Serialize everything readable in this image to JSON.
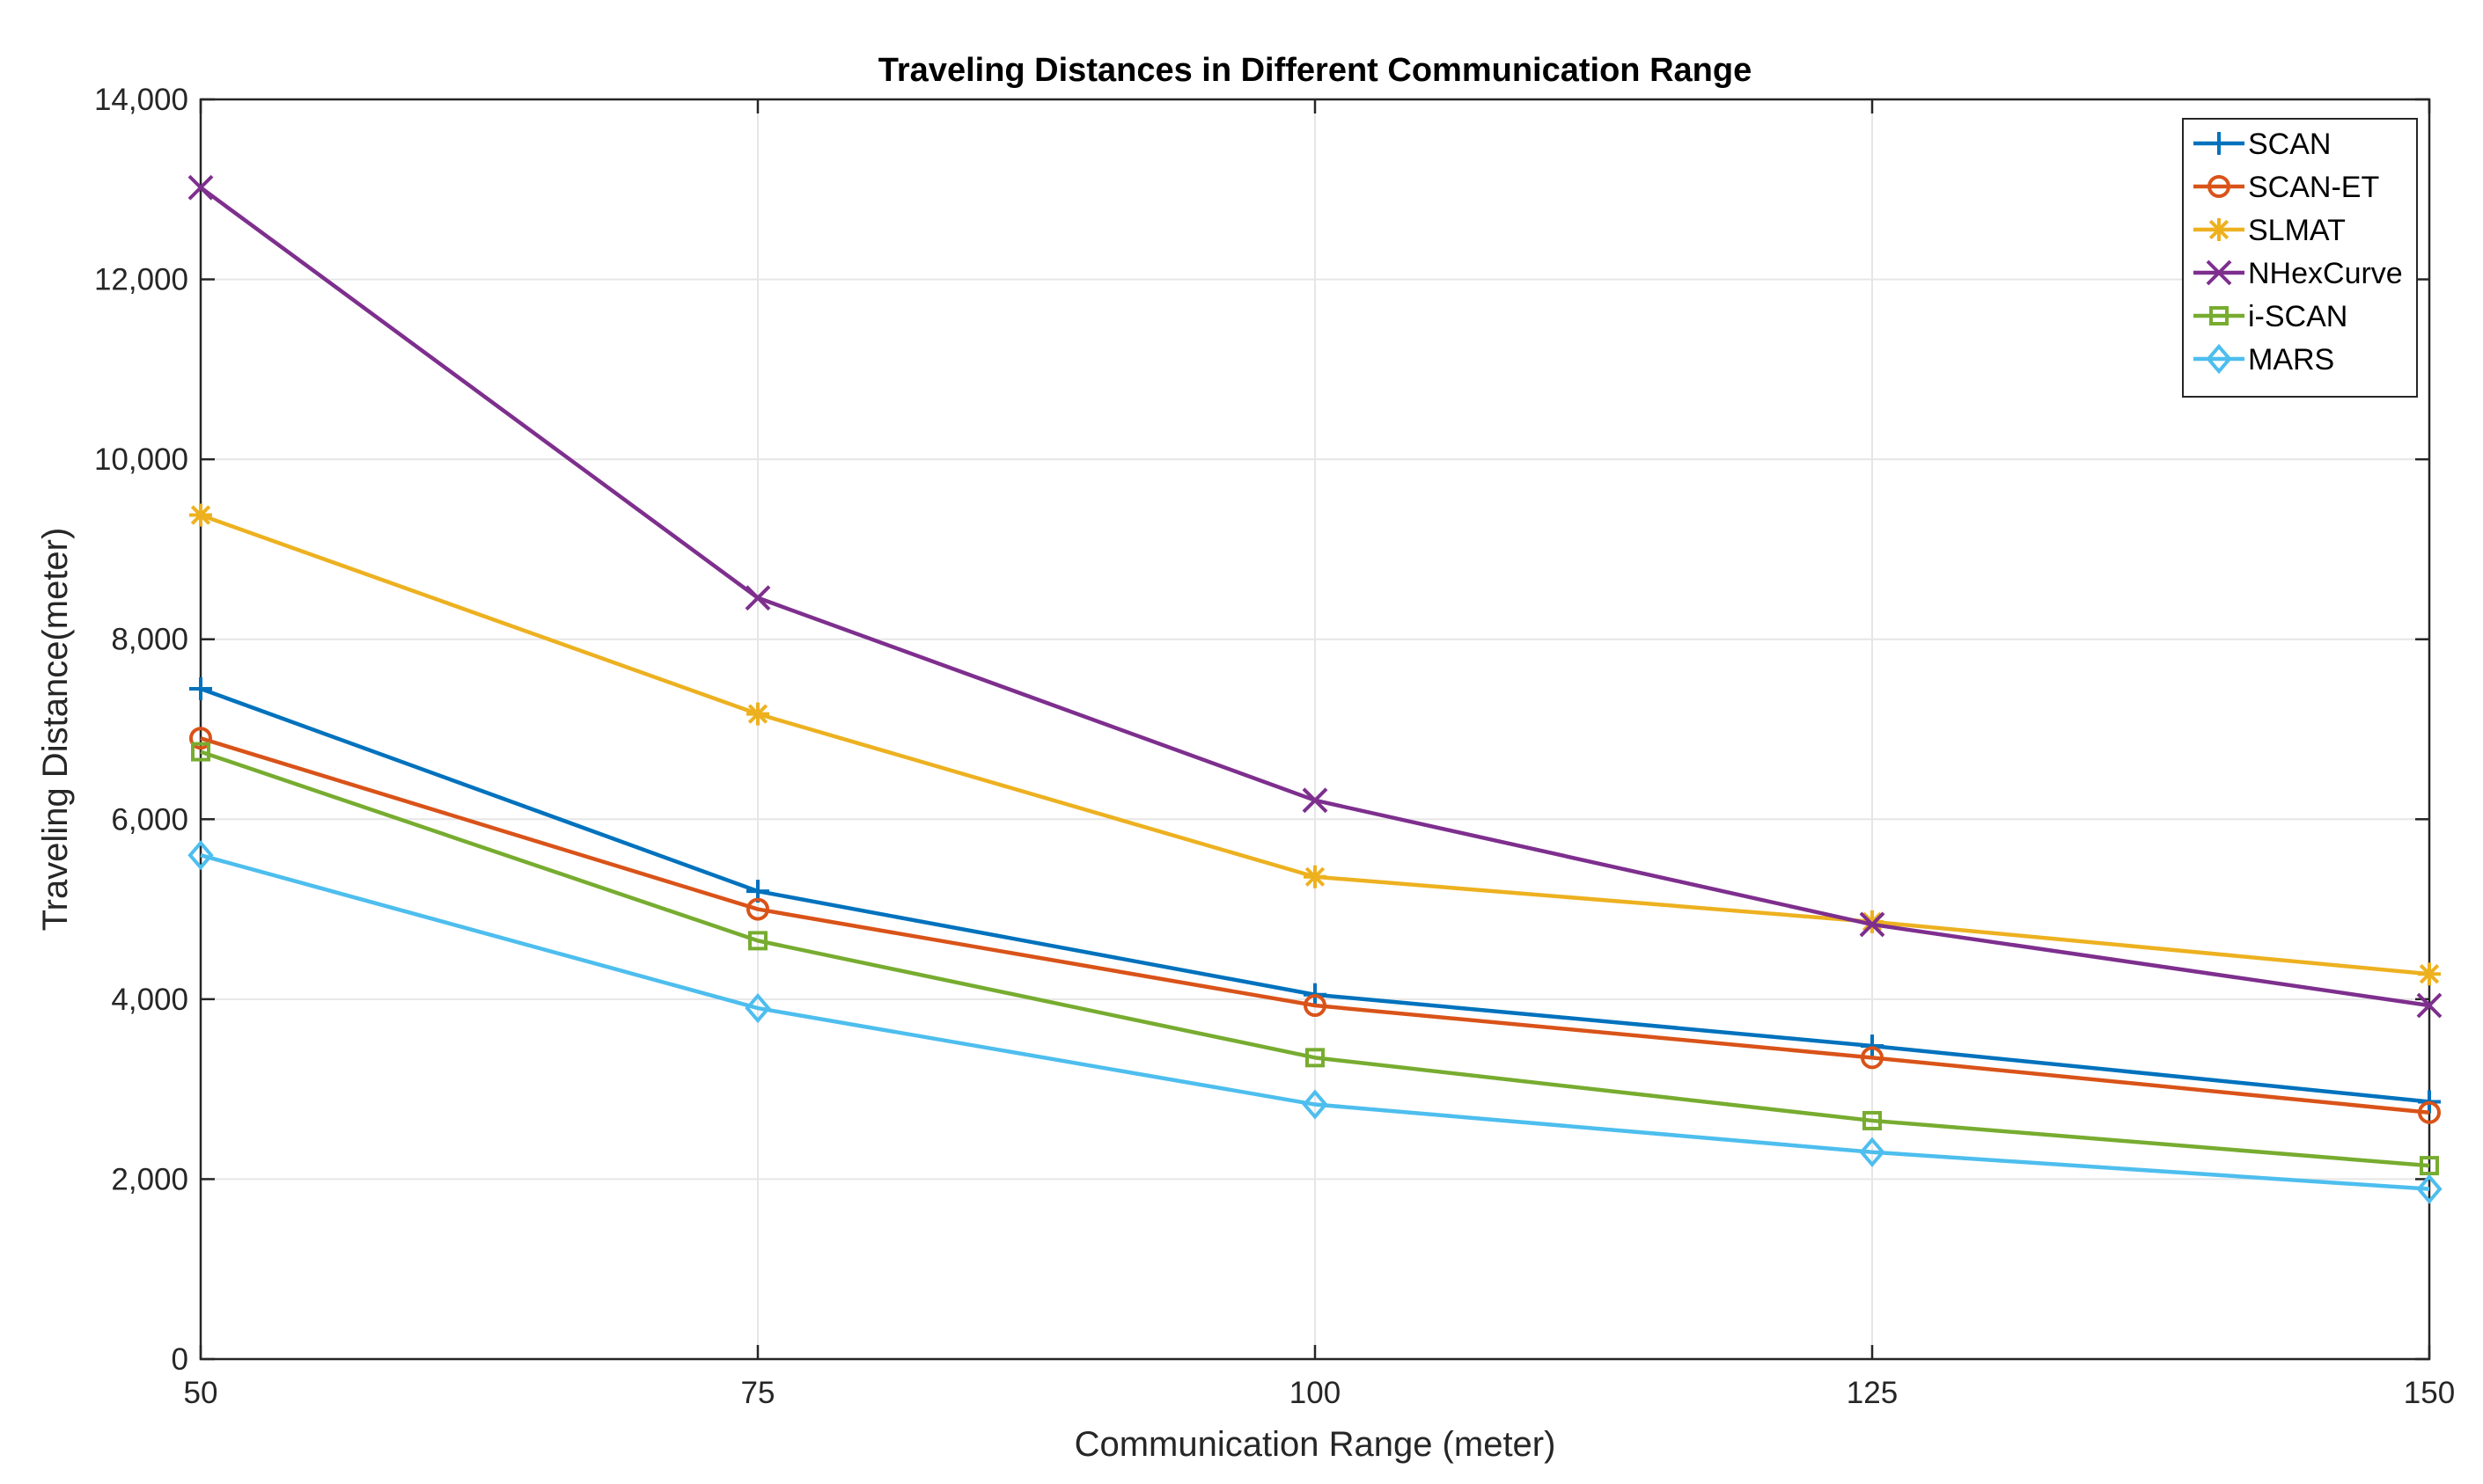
{
  "chart_data": {
    "type": "line",
    "title": "Traveling Distances in Different Communication Range",
    "xlabel": "Communication Range (meter)",
    "ylabel": "Traveling Distance(meter)",
    "x": [
      50,
      75,
      100,
      125,
      150
    ],
    "x_tick_labels": [
      "50",
      "75",
      "100",
      "125",
      "150"
    ],
    "xlim": [
      50,
      150
    ],
    "ylim": [
      0,
      14000
    ],
    "y_ticks": [
      0,
      2000,
      4000,
      6000,
      8000,
      10000,
      12000,
      14000
    ],
    "y_tick_labels": [
      "0",
      "2,000",
      "4,000",
      "6,000",
      "8,000",
      "10,000",
      "12,000",
      "14,000"
    ],
    "grid": true,
    "legend_position": "top-right",
    "series": [
      {
        "name": "SCAN",
        "values": [
          7450,
          5200,
          4050,
          3480,
          2860
        ],
        "color": "#0072BD",
        "marker": "plus"
      },
      {
        "name": "SCAN-ET",
        "values": [
          6900,
          5000,
          3930,
          3350,
          2740
        ],
        "color": "#D95319",
        "marker": "circle"
      },
      {
        "name": "SLMAT",
        "values": [
          9380,
          7170,
          5360,
          4860,
          4280
        ],
        "color": "#EDB120",
        "marker": "asterisk"
      },
      {
        "name": "NHexCurve",
        "values": [
          13020,
          8460,
          6210,
          4830,
          3930
        ],
        "color": "#7E2F8E",
        "marker": "x"
      },
      {
        "name": "i-SCAN",
        "values": [
          6750,
          4650,
          3350,
          2650,
          2150
        ],
        "color": "#77AC30",
        "marker": "square"
      },
      {
        "name": "MARS",
        "values": [
          5600,
          3900,
          2830,
          2300,
          1890
        ],
        "color": "#4DBEEE",
        "marker": "diamond"
      }
    ]
  }
}
